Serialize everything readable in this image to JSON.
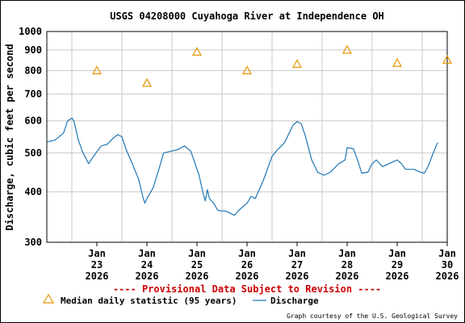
{
  "chart_data": {
    "type": "line",
    "title": "USGS 04208000 Cuyahoga River at Independence OH",
    "ylabel": "Discharge, cubic feet per second",
    "xlabel": "",
    "y_scale": "log",
    "ylim": [
      300,
      1000
    ],
    "y_ticks": [
      "1000",
      "900",
      "800",
      "700",
      "600",
      "500",
      "400",
      "300"
    ],
    "y_tick_values": [
      1000,
      900,
      800,
      700,
      600,
      500,
      400,
      300
    ],
    "xlim": [
      "2026-01-22T12:00",
      "2026-01-30T12:00"
    ],
    "x_ticks": [
      {
        "date": "2026-01-23",
        "month": "Jan",
        "day": "23",
        "year": "2026"
      },
      {
        "date": "2026-01-24",
        "month": "Jan",
        "day": "24",
        "year": "2026"
      },
      {
        "date": "2026-01-25",
        "month": "Jan",
        "day": "25",
        "year": "2026"
      },
      {
        "date": "2026-01-26",
        "month": "Jan",
        "day": "26",
        "year": "2026"
      },
      {
        "date": "2026-01-27",
        "month": "Jan",
        "day": "27",
        "year": "2026"
      },
      {
        "date": "2026-01-28",
        "month": "Jan",
        "day": "28",
        "year": "2026"
      },
      {
        "date": "2026-01-29",
        "month": "Jan",
        "day": "29",
        "year": "2026"
      },
      {
        "date": "2026-01-30",
        "month": "Jan",
        "day": "30",
        "year": "2026"
      }
    ],
    "grid": true,
    "series": [
      {
        "name": "Discharge",
        "color": "#1f77b4",
        "points": [
          [
            "2026-01-22T12:00",
            532
          ],
          [
            "2026-01-22T16:00",
            538
          ],
          [
            "2026-01-22T20:00",
            560
          ],
          [
            "2026-01-22T22:00",
            600
          ],
          [
            "2026-01-23T00:00",
            610
          ],
          [
            "2026-01-23T01:00",
            600
          ],
          [
            "2026-01-23T03:00",
            540
          ],
          [
            "2026-01-23T05:00",
            505
          ],
          [
            "2026-01-23T08:00",
            470
          ],
          [
            "2026-01-23T11:00",
            495
          ],
          [
            "2026-01-23T14:00",
            520
          ],
          [
            "2026-01-23T17:00",
            525
          ],
          [
            "2026-01-23T20:00",
            545
          ],
          [
            "2026-01-23T22:00",
            555
          ],
          [
            "2026-01-24T00:00",
            548
          ],
          [
            "2026-01-24T02:00",
            510
          ],
          [
            "2026-01-24T05:00",
            470
          ],
          [
            "2026-01-24T08:00",
            430
          ],
          [
            "2026-01-24T10:00",
            390
          ],
          [
            "2026-01-24T11:00",
            375
          ],
          [
            "2026-01-24T12:00",
            385
          ],
          [
            "2026-01-24T15:00",
            410
          ],
          [
            "2026-01-24T18:00",
            460
          ],
          [
            "2026-01-24T20:00",
            500
          ],
          [
            "2026-01-25T00:00",
            505
          ],
          [
            "2026-01-25T03:00",
            510
          ],
          [
            "2026-01-25T06:00",
            520
          ],
          [
            "2026-01-25T09:00",
            505
          ],
          [
            "2026-01-25T13:00",
            440
          ],
          [
            "2026-01-25T15:00",
            395
          ],
          [
            "2026-01-25T16:00",
            380
          ],
          [
            "2026-01-25T17:00",
            405
          ],
          [
            "2026-01-25T18:00",
            385
          ],
          [
            "2026-01-25T20:00",
            375
          ],
          [
            "2026-01-25T22:00",
            360
          ],
          [
            "2026-01-26T02:00",
            358
          ],
          [
            "2026-01-26T06:00",
            350
          ],
          [
            "2026-01-26T08:00",
            360
          ],
          [
            "2026-01-26T12:00",
            375
          ],
          [
            "2026-01-26T14:00",
            390
          ],
          [
            "2026-01-26T16:00",
            385
          ],
          [
            "2026-01-26T20:00",
            430
          ],
          [
            "2026-01-27T00:00",
            490
          ],
          [
            "2026-01-27T02:00",
            505
          ],
          [
            "2026-01-27T06:00",
            530
          ],
          [
            "2026-01-27T10:00",
            585
          ],
          [
            "2026-01-27T12:00",
            598
          ],
          [
            "2026-01-27T14:00",
            590
          ],
          [
            "2026-01-27T16:00",
            550
          ],
          [
            "2026-01-27T19:00",
            480
          ],
          [
            "2026-01-27T22:00",
            447
          ],
          [
            "2026-01-28T01:00",
            440
          ],
          [
            "2026-01-28T04:00",
            448
          ],
          [
            "2026-01-28T08:00",
            470
          ],
          [
            "2026-01-28T11:00",
            480
          ],
          [
            "2026-01-28T12:00",
            515
          ],
          [
            "2026-01-28T15:00",
            512
          ],
          [
            "2026-01-28T17:00",
            480
          ],
          [
            "2026-01-28T19:00",
            445
          ],
          [
            "2026-01-28T22:00",
            448
          ],
          [
            "2026-01-29T00:00",
            470
          ],
          [
            "2026-01-29T02:00",
            480
          ],
          [
            "2026-01-29T05:00",
            462
          ],
          [
            "2026-01-29T08:00",
            470
          ],
          [
            "2026-01-29T12:00",
            480
          ],
          [
            "2026-01-29T14:00",
            470
          ],
          [
            "2026-01-29T16:00",
            455
          ],
          [
            "2026-01-29T20:00",
            455
          ],
          [
            "2026-01-29T23:00",
            448
          ],
          [
            "2026-01-30T01:00",
            445
          ],
          [
            "2026-01-30T03:00",
            465
          ],
          [
            "2026-01-30T05:00",
            495
          ],
          [
            "2026-01-30T07:00",
            525
          ],
          [
            "2026-01-30T07:30",
            530
          ]
        ]
      },
      {
        "name": "Median daily statistic (95 years)",
        "color": "#e69500",
        "marker": "triangle",
        "points": [
          [
            "2026-01-23",
            800
          ],
          [
            "2026-01-24",
            745
          ],
          [
            "2026-01-25",
            890
          ],
          [
            "2026-01-26",
            800
          ],
          [
            "2026-01-27",
            830
          ],
          [
            "2026-01-28",
            900
          ],
          [
            "2026-01-29",
            835
          ],
          [
            "2026-01-30",
            850
          ]
        ]
      }
    ],
    "annotation": "---- Provisional Data Subject to Revision ----",
    "annotation_color": "#cc0000",
    "legend": [
      {
        "label": "Median daily statistic (95 years)",
        "symbol": "triangle",
        "color": "#e69500"
      },
      {
        "label": "Discharge",
        "symbol": "line",
        "color": "#1f77b4"
      }
    ],
    "legend_placement": "bottom",
    "credit": "Graph courtesy of the U.S. Geological Survey"
  }
}
